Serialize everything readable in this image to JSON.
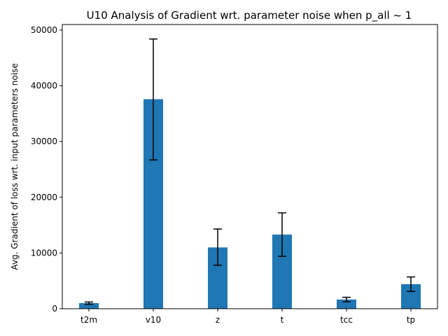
{
  "chart_data": {
    "type": "bar",
    "title": "U10 Analysis of Gradient wrt. parameter noise when p_all ~ 1",
    "xlabel": "",
    "ylabel": "Avg. Gradient of loss wrt. input parameters noise",
    "categories": [
      "t2m",
      "v10",
      "z",
      "t",
      "tcc",
      "tp"
    ],
    "values": [
      1000,
      37600,
      11000,
      13300,
      1650,
      4400
    ],
    "error_low": [
      800,
      26700,
      7800,
      9400,
      1250,
      3100
    ],
    "error_high": [
      1200,
      48400,
      14300,
      17200,
      2050,
      5700
    ],
    "ylim": [
      0,
      51000
    ],
    "yticks": [
      0,
      10000,
      20000,
      30000,
      40000,
      50000
    ],
    "grid": false,
    "colors": {
      "bar": "#1f77b4",
      "error_bar": "#000000"
    }
  }
}
